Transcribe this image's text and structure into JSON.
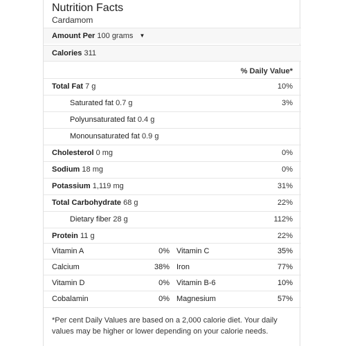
{
  "header": {
    "title": "Nutrition Facts",
    "subtitle": "Cardamom"
  },
  "serving": {
    "label": "Amount Per",
    "value": "100 grams"
  },
  "calories": {
    "label": "Calories",
    "value": "311"
  },
  "daily_value_header": "% Daily Value*",
  "nutrients": {
    "total_fat": {
      "label": "Total Fat",
      "amount": "7 g",
      "pct": "10%"
    },
    "saturated_fat": {
      "label": "Saturated fat",
      "amount": "0.7 g",
      "pct": "3%"
    },
    "poly_fat": {
      "label": "Polyunsaturated fat",
      "amount": "0.4 g"
    },
    "mono_fat": {
      "label": "Monounsaturated fat",
      "amount": "0.9 g"
    },
    "cholesterol": {
      "label": "Cholesterol",
      "amount": "0 mg",
      "pct": "0%"
    },
    "sodium": {
      "label": "Sodium",
      "amount": "18 mg",
      "pct": "0%"
    },
    "potassium": {
      "label": "Potassium",
      "amount": "1,119 mg",
      "pct": "31%"
    },
    "total_carb": {
      "label": "Total Carbohydrate",
      "amount": "68 g",
      "pct": "22%"
    },
    "fiber": {
      "label": "Dietary fiber",
      "amount": "28 g",
      "pct": "112%"
    },
    "protein": {
      "label": "Protein",
      "amount": "11 g",
      "pct": "22%"
    }
  },
  "vitamins": [
    {
      "left_label": "Vitamin A",
      "left_pct": "0%",
      "right_label": "Vitamin C",
      "right_pct": "35%"
    },
    {
      "left_label": "Calcium",
      "left_pct": "38%",
      "right_label": "Iron",
      "right_pct": "77%"
    },
    {
      "left_label": "Vitamin D",
      "left_pct": "0%",
      "right_label": "Vitamin B-6",
      "right_pct": "10%"
    },
    {
      "left_label": "Cobalamin",
      "left_pct": "0%",
      "right_label": "Magnesium",
      "right_pct": "57%"
    }
  ],
  "footer": "*Per cent Daily Values are based on a 2,000 calorie diet. Your daily values may be higher or lower depending on your calorie needs.",
  "icons": {
    "serving_dropdown": "caret-down-icon"
  }
}
